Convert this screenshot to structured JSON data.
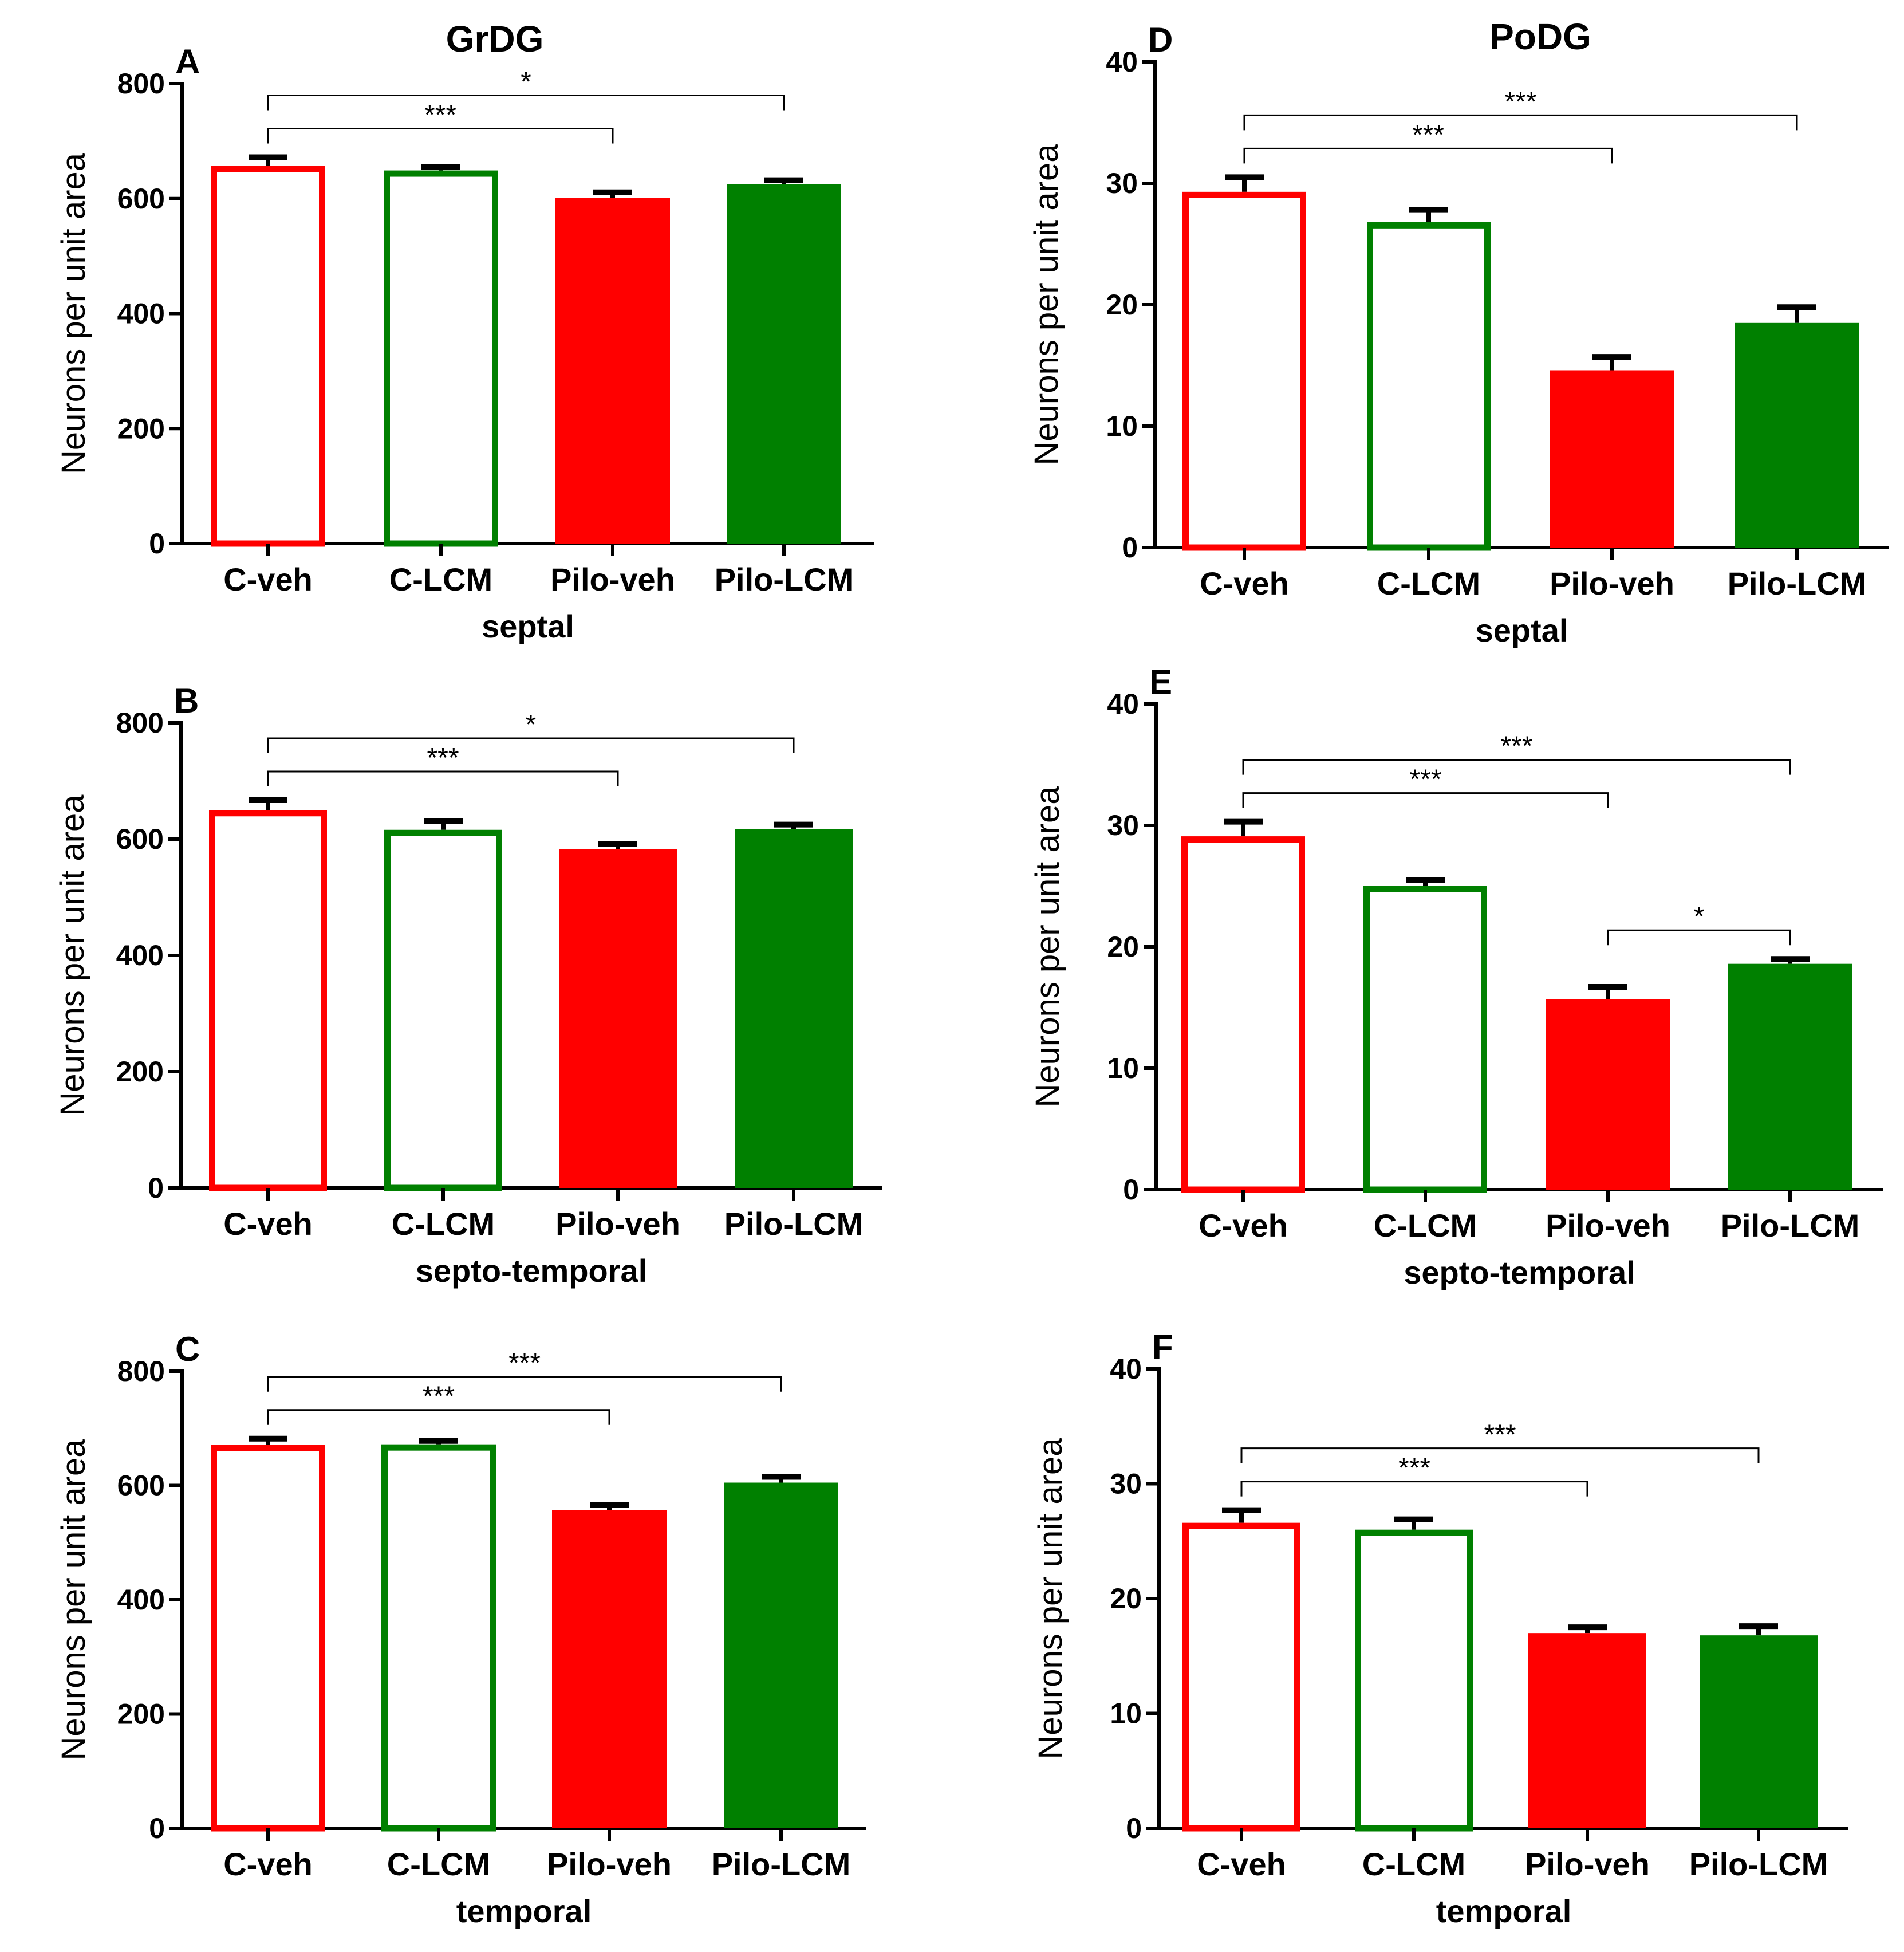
{
  "chart_data": [
    {
      "letter": "A",
      "column_title": "GrDG",
      "region": "septal",
      "type": "bar",
      "ylabel": "Neurons per unit area",
      "xlabel": "septal",
      "ylim": [
        0,
        800
      ],
      "yticks": [
        0,
        200,
        400,
        600,
        800
      ],
      "categories": [
        "C-veh",
        "C-LCM",
        "Pilo-veh",
        "Pilo-LCM"
      ],
      "values": [
        657,
        649,
        601,
        625
      ],
      "errors": [
        15,
        6,
        10,
        7
      ],
      "significance": [
        {
          "from": 0,
          "to": 2,
          "label": "***"
        },
        {
          "from": 0,
          "to": 3,
          "label": "*"
        }
      ]
    },
    {
      "letter": "B",
      "column_title": "",
      "region": "septo-temporal",
      "type": "bar",
      "ylabel": "Neurons per unit area",
      "xlabel": "septo-temporal",
      "ylim": [
        0,
        800
      ],
      "yticks": [
        0,
        200,
        400,
        600,
        800
      ],
      "categories": [
        "C-veh",
        "C-LCM",
        "Pilo-veh",
        "Pilo-LCM"
      ],
      "values": [
        650,
        616,
        583,
        617
      ],
      "errors": [
        17,
        15,
        9,
        8
      ],
      "significance": [
        {
          "from": 0,
          "to": 2,
          "label": "***"
        },
        {
          "from": 0,
          "to": 3,
          "label": "*"
        }
      ]
    },
    {
      "letter": "C",
      "column_title": "",
      "region": "temporal",
      "type": "bar",
      "ylabel": "Neurons per unit area",
      "xlabel": "temporal",
      "ylim": [
        0,
        800
      ],
      "yticks": [
        0,
        200,
        400,
        600,
        800
      ],
      "categories": [
        "C-veh",
        "C-LCM",
        "Pilo-veh",
        "Pilo-LCM"
      ],
      "values": [
        671,
        672,
        557,
        605
      ],
      "errors": [
        11,
        6,
        9,
        10
      ],
      "significance": [
        {
          "from": 0,
          "to": 2,
          "label": "***"
        },
        {
          "from": 0,
          "to": 3,
          "label": "***"
        }
      ]
    },
    {
      "letter": "D",
      "column_title": "PoDG",
      "region": "septal",
      "type": "bar",
      "ylabel": "Neurons per unit area",
      "xlabel": "septal",
      "ylim": [
        0,
        40
      ],
      "yticks": [
        0,
        10,
        20,
        30,
        40
      ],
      "categories": [
        "C-veh",
        "C-LCM",
        "Pilo-veh",
        "Pilo-LCM"
      ],
      "values": [
        29.3,
        26.8,
        14.6,
        18.5
      ],
      "errors": [
        1.2,
        1.0,
        1.1,
        1.3
      ],
      "significance": [
        {
          "from": 0,
          "to": 2,
          "label": "***"
        },
        {
          "from": 0,
          "to": 3,
          "label": "***"
        }
      ]
    },
    {
      "letter": "E",
      "column_title": "",
      "region": "septo-temporal",
      "type": "bar",
      "ylabel": "Neurons per unit area",
      "xlabel": "septo-temporal",
      "ylim": [
        0,
        40
      ],
      "yticks": [
        0,
        10,
        20,
        30,
        40
      ],
      "categories": [
        "C-veh",
        "C-LCM",
        "Pilo-veh",
        "Pilo-LCM"
      ],
      "values": [
        29.1,
        25.0,
        15.7,
        18.6
      ],
      "errors": [
        1.2,
        0.5,
        1.0,
        0.4
      ],
      "significance": [
        {
          "from": 0,
          "to": 2,
          "label": "***"
        },
        {
          "from": 0,
          "to": 3,
          "label": "***"
        },
        {
          "from": 2,
          "to": 3,
          "label": "*"
        }
      ]
    },
    {
      "letter": "F",
      "column_title": "",
      "region": "temporal",
      "type": "bar",
      "ylabel": "Neurons per unit area",
      "xlabel": "temporal",
      "ylim": [
        0,
        40
      ],
      "yticks": [
        0,
        10,
        20,
        30,
        40
      ],
      "categories": [
        "C-veh",
        "C-LCM",
        "Pilo-veh",
        "Pilo-LCM"
      ],
      "values": [
        26.6,
        26.0,
        17.0,
        16.8
      ],
      "errors": [
        1.1,
        0.9,
        0.5,
        0.8
      ],
      "significance": [
        {
          "from": 0,
          "to": 2,
          "label": "***"
        },
        {
          "from": 0,
          "to": 3,
          "label": "***"
        }
      ]
    }
  ],
  "colors": {
    "C-veh": "#ff0000",
    "C-LCM": "#008000",
    "Pilo-veh": "#ff0000",
    "Pilo-LCM": "#008000"
  },
  "filled": {
    "C-veh": false,
    "C-LCM": false,
    "Pilo-veh": true,
    "Pilo-LCM": true
  }
}
